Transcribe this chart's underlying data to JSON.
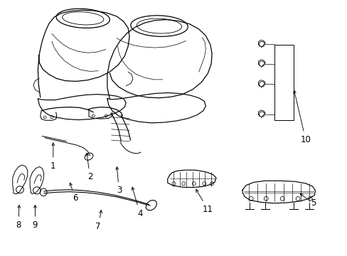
{
  "background_color": "#ffffff",
  "line_color": "#000000",
  "label_fontsize": 8.5,
  "figure_width": 4.89,
  "figure_height": 3.6,
  "dpi": 100
}
